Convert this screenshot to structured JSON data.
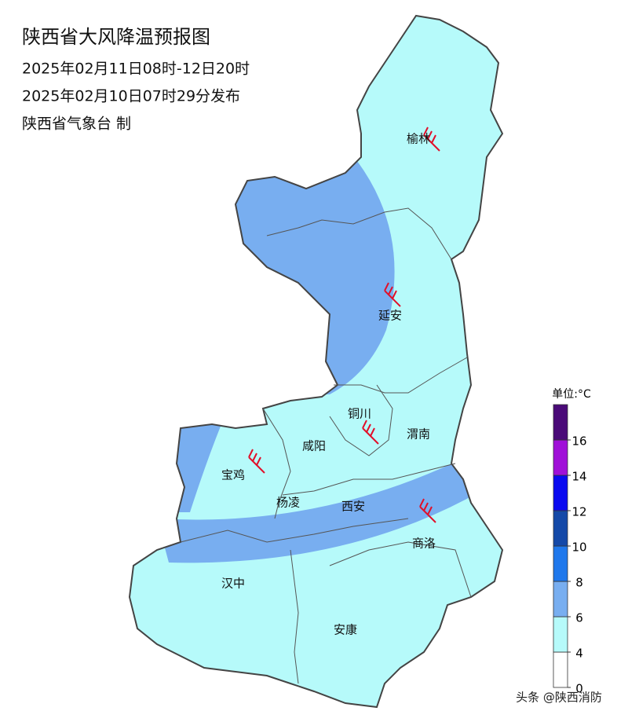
{
  "header": {
    "title": "陕西省大风降温预报图",
    "lines": [
      "2025年02月11日08时-12日20时",
      "2025年02月10日07时29分发布",
      "陕西省气象台 制"
    ]
  },
  "cities": [
    "榆林",
    "延安",
    "铜川",
    "咸阳",
    "渭南",
    "宝鸡",
    "杨凌",
    "西安",
    "商洛",
    "汉中",
    "安康"
  ],
  "legend": {
    "unit": "单位:°C",
    "ticks": [
      0,
      4,
      6,
      8,
      10,
      12,
      14,
      16
    ],
    "colors": [
      "#ffffff",
      "#b6fafa",
      "#78aef0",
      "#1f78ec",
      "#1449a8",
      "#0a0af0",
      "#a010d8",
      "#4a0a78"
    ]
  },
  "watermark": "头条 @陕西消防"
}
